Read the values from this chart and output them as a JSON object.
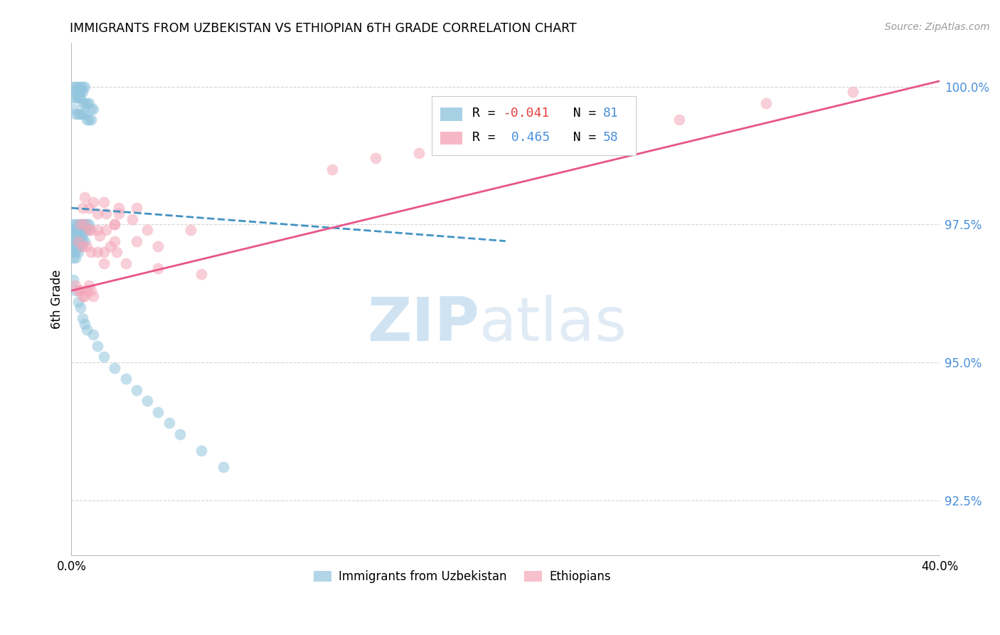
{
  "title": "IMMIGRANTS FROM UZBEKISTAN VS ETHIOPIAN 6TH GRADE CORRELATION CHART",
  "source": "Source: ZipAtlas.com",
  "ylabel": "6th Grade",
  "ytick_values": [
    0.925,
    0.95,
    0.975,
    1.0
  ],
  "xmin": 0.0,
  "xmax": 0.4,
  "ymin": 0.915,
  "ymax": 1.008,
  "watermark_zip": "ZIP",
  "watermark_atlas": "atlas",
  "blue_color": "#92c5de",
  "pink_color": "#f4a6b8",
  "trendline_blue_color": "#4393c3",
  "trendline_pink_color": "#e8558a",
  "grid_color": "#cccccc",
  "background_color": "#ffffff",
  "blue_scatter_x": [
    0.001,
    0.002,
    0.002,
    0.003,
    0.003,
    0.004,
    0.004,
    0.005,
    0.005,
    0.006,
    0.001,
    0.002,
    0.003,
    0.004,
    0.005,
    0.006,
    0.007,
    0.008,
    0.009,
    0.01,
    0.001,
    0.002,
    0.003,
    0.004,
    0.005,
    0.006,
    0.007,
    0.008,
    0.009,
    0.001,
    0.002,
    0.003,
    0.004,
    0.005,
    0.006,
    0.007,
    0.008,
    0.001,
    0.002,
    0.003,
    0.004,
    0.005,
    0.006,
    0.007,
    0.001,
    0.002,
    0.003,
    0.004,
    0.005,
    0.006,
    0.001,
    0.002,
    0.003,
    0.004,
    0.005,
    0.001,
    0.002,
    0.003,
    0.004,
    0.001,
    0.002,
    0.003,
    0.001,
    0.002,
    0.001,
    0.002,
    0.003,
    0.004,
    0.005,
    0.006,
    0.007,
    0.01,
    0.012,
    0.015,
    0.02,
    0.025,
    0.03,
    0.035,
    0.04,
    0.045,
    0.05,
    0.06,
    0.07
  ],
  "blue_scatter_y": [
    1.0,
    1.0,
    0.999,
    1.0,
    0.999,
    1.0,
    0.999,
    1.0,
    0.999,
    1.0,
    0.998,
    0.998,
    0.998,
    0.998,
    0.997,
    0.997,
    0.997,
    0.997,
    0.996,
    0.996,
    0.996,
    0.995,
    0.995,
    0.995,
    0.995,
    0.995,
    0.994,
    0.994,
    0.994,
    0.975,
    0.975,
    0.975,
    0.975,
    0.975,
    0.975,
    0.975,
    0.975,
    0.974,
    0.974,
    0.974,
    0.974,
    0.974,
    0.974,
    0.974,
    0.973,
    0.973,
    0.973,
    0.973,
    0.973,
    0.972,
    0.972,
    0.972,
    0.972,
    0.972,
    0.972,
    0.971,
    0.971,
    0.971,
    0.971,
    0.97,
    0.97,
    0.97,
    0.969,
    0.969,
    0.965,
    0.963,
    0.961,
    0.96,
    0.958,
    0.957,
    0.956,
    0.955,
    0.953,
    0.951,
    0.949,
    0.947,
    0.945,
    0.943,
    0.941,
    0.939,
    0.937,
    0.934,
    0.931
  ],
  "pink_scatter_x": [
    0.002,
    0.003,
    0.004,
    0.005,
    0.006,
    0.007,
    0.008,
    0.009,
    0.01,
    0.003,
    0.005,
    0.007,
    0.009,
    0.012,
    0.015,
    0.018,
    0.021,
    0.004,
    0.006,
    0.009,
    0.012,
    0.016,
    0.02,
    0.005,
    0.008,
    0.012,
    0.016,
    0.022,
    0.028,
    0.006,
    0.01,
    0.015,
    0.022,
    0.03,
    0.008,
    0.013,
    0.02,
    0.03,
    0.04,
    0.015,
    0.025,
    0.04,
    0.06,
    0.02,
    0.035,
    0.055,
    0.12,
    0.14,
    0.16,
    0.18,
    0.2,
    0.22,
    0.25,
    0.28,
    0.32,
    0.36
  ],
  "pink_scatter_y": [
    0.964,
    0.963,
    0.963,
    0.962,
    0.962,
    0.963,
    0.964,
    0.963,
    0.962,
    0.972,
    0.971,
    0.971,
    0.97,
    0.97,
    0.97,
    0.971,
    0.97,
    0.975,
    0.975,
    0.974,
    0.974,
    0.974,
    0.975,
    0.978,
    0.978,
    0.977,
    0.977,
    0.977,
    0.976,
    0.98,
    0.979,
    0.979,
    0.978,
    0.978,
    0.974,
    0.973,
    0.972,
    0.972,
    0.971,
    0.968,
    0.968,
    0.967,
    0.966,
    0.975,
    0.974,
    0.974,
    0.985,
    0.987,
    0.988,
    0.989,
    0.99,
    0.991,
    0.993,
    0.994,
    0.997,
    0.999
  ],
  "blue_trend_x": [
    0.0,
    0.2
  ],
  "blue_trend_y": [
    0.978,
    0.972
  ],
  "pink_trend_x": [
    0.0,
    0.4
  ],
  "pink_trend_y": [
    0.963,
    1.001
  ]
}
